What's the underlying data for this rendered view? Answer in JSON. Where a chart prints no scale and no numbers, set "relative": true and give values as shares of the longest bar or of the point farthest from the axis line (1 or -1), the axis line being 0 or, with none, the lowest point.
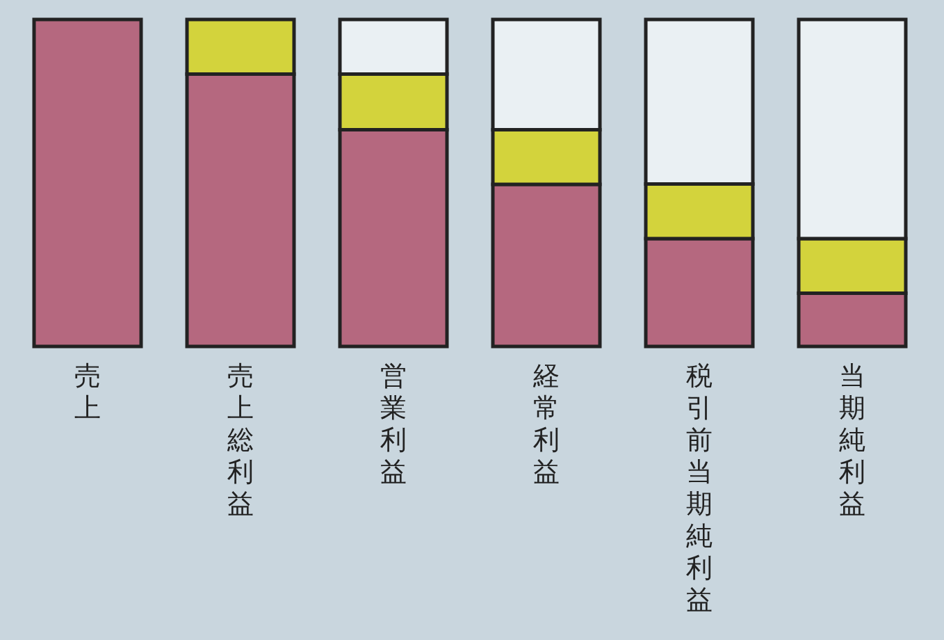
{
  "chart_data": {
    "type": "bar",
    "stacked": true,
    "relative": true,
    "legend": false,
    "categories": [
      "売上",
      "売上総利益",
      "営業利益",
      "経常利益",
      "税引前当期純利益",
      "当期純利益"
    ],
    "series": [
      {
        "color": "#b5687f",
        "values": [
          1,
          0.833,
          0.663,
          0.496,
          0.33,
          0.163
        ]
      },
      {
        "color": "#d3d33c",
        "values": [
          null,
          0.167,
          0.17,
          0.167,
          0.167,
          0.167
        ]
      },
      {
        "color": "#eaf0f3",
        "values": [
          null,
          null,
          0.167,
          0.337,
          0.503,
          0.67
        ]
      }
    ]
  }
}
